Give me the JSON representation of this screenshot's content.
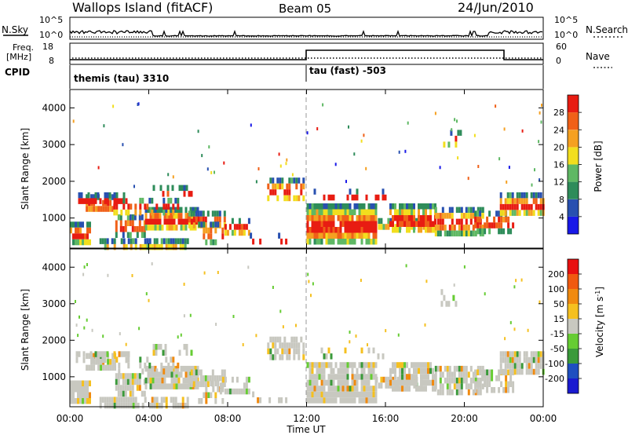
{
  "header": {
    "title": "Wallops Island (fitACF)",
    "beam": "Beam 05",
    "date": "24/Jun/2010"
  },
  "noise_panel": {
    "left_label": "N.Sky",
    "right_label": "N.Search",
    "ticks": [
      "10^5",
      "10^0"
    ]
  },
  "freq_panel": {
    "left_label_top": "Freq.",
    "left_label_unit": "[MHz]",
    "right_label": "Nave",
    "left_ticks": [
      "18",
      "8"
    ],
    "right_ticks": [
      "60",
      "0"
    ]
  },
  "cpid_panel": {
    "label": "CPID",
    "programs": [
      {
        "text": "themis (tau) 3310",
        "start_hour": 0
      },
      {
        "text": "tau (fast) -503",
        "start_hour": 12
      }
    ]
  },
  "chart_data": [
    {
      "type": "heatmap",
      "name": "power",
      "ylabel": "Slant Range [km]",
      "xlabel": "",
      "xlim": [
        0,
        24
      ],
      "ylim": [
        180,
        4500
      ],
      "yticks": [
        1000,
        2000,
        3000,
        4000
      ],
      "colorbar": {
        "label": "Power [dB]",
        "ticks": [
          "4",
          "8",
          "12",
          "16",
          "20",
          "24",
          "28"
        ],
        "colors": [
          "#1818e8",
          "#2850b0",
          "#2e8c5a",
          "#5fb864",
          "#f2de1e",
          "#f5a021",
          "#f06018",
          "#e81c12"
        ]
      }
    },
    {
      "type": "heatmap",
      "name": "velocity",
      "ylabel": "Slant Range [km]",
      "xlabel": "Time UT",
      "xlim": [
        0,
        24
      ],
      "ylim": [
        180,
        4500
      ],
      "yticks": [
        1000,
        2000,
        3000,
        4000
      ],
      "xticks": [
        "00:00",
        "04:00",
        "08:00",
        "12:00",
        "16:00",
        "20:00",
        "00:00"
      ],
      "colorbar": {
        "label": "Velocity [m s",
        "label_sup": "-1",
        "label_end": "]",
        "ticks": [
          "200",
          "100",
          "50",
          "15",
          "-15",
          "-50",
          "-100",
          "-200"
        ],
        "colors": [
          "#1a1ad0",
          "#1f4fc0",
          "#3a9a3a",
          "#66cc33",
          "#c8c8c0",
          "#f5c020",
          "#f08a10",
          "#f05a10",
          "#e81010"
        ]
      }
    }
  ]
}
